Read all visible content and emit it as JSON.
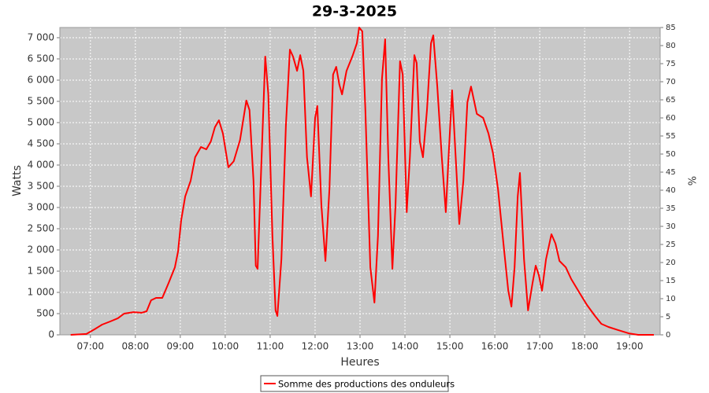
{
  "chart_data": {
    "type": "line",
    "title": "29-3-2025",
    "x_label": "Heures",
    "y_label": "Watts",
    "y2_label": "%",
    "x": [
      6.56,
      6.91,
      7.09,
      7.26,
      7.44,
      7.61,
      7.75,
      7.96,
      8.14,
      8.25,
      8.35,
      8.46,
      8.6,
      8.74,
      8.88,
      8.95,
      9.02,
      9.11,
      9.23,
      9.33,
      9.46,
      9.58,
      9.68,
      9.77,
      9.86,
      9.95,
      10.07,
      10.19,
      10.33,
      10.47,
      10.54,
      10.63,
      10.68,
      10.72,
      10.79,
      10.89,
      10.96,
      11.05,
      11.12,
      11.16,
      11.25,
      11.35,
      11.44,
      11.51,
      11.6,
      11.67,
      11.74,
      11.82,
      11.91,
      12.0,
      12.05,
      12.14,
      12.23,
      12.32,
      12.4,
      12.47,
      12.54,
      12.6,
      12.7,
      12.84,
      12.93,
      12.98,
      13.05,
      13.12,
      13.23,
      13.32,
      13.4,
      13.49,
      13.56,
      13.63,
      13.72,
      13.79,
      13.89,
      13.95,
      14.04,
      14.11,
      14.21,
      14.26,
      14.33,
      14.4,
      14.49,
      14.58,
      14.63,
      14.72,
      14.82,
      14.91,
      14.98,
      15.05,
      15.12,
      15.21,
      15.3,
      15.39,
      15.47,
      15.6,
      15.74,
      15.86,
      15.96,
      16.07,
      16.21,
      16.3,
      16.37,
      16.44,
      16.51,
      16.56,
      16.65,
      16.74,
      16.84,
      16.91,
      16.98,
      17.05,
      17.14,
      17.26,
      17.35,
      17.44,
      17.58,
      17.7,
      17.88,
      18.05,
      18.23,
      18.37,
      18.53,
      18.75,
      18.98,
      19.19,
      19.54
    ],
    "series": [
      {
        "name": "Somme des productions des onduleurs",
        "color": "#ff0000",
        "values": [
          0,
          20,
          130,
          240,
          315,
          390,
          500,
          535,
          520,
          555,
          815,
          870,
          870,
          1220,
          1590,
          1960,
          2700,
          3260,
          3630,
          4185,
          4425,
          4370,
          4555,
          4890,
          5055,
          4740,
          3945,
          4090,
          4590,
          5520,
          5295,
          3630,
          1630,
          1555,
          3630,
          6555,
          5665,
          2335,
          575,
          445,
          1780,
          4925,
          6720,
          6555,
          6220,
          6590,
          6220,
          4185,
          3260,
          5110,
          5390,
          3075,
          1740,
          3445,
          6130,
          6315,
          5890,
          5665,
          6220,
          6590,
          6870,
          7240,
          7150,
          5295,
          1590,
          760,
          2335,
          6035,
          6965,
          4185,
          1555,
          3075,
          6445,
          6130,
          2890,
          4185,
          6590,
          6405,
          4555,
          4185,
          5295,
          6870,
          7055,
          5850,
          4185,
          2890,
          4370,
          5760,
          4370,
          2610,
          3630,
          5480,
          5850,
          5205,
          5110,
          4740,
          4280,
          3445,
          1960,
          1040,
          665,
          1590,
          3260,
          3815,
          1780,
          575,
          1220,
          1630,
          1405,
          1040,
          1780,
          2370,
          2150,
          1740,
          1590,
          1315,
          1000,
          705,
          445,
          260,
          185,
          110,
          35,
          0,
          0
        ]
      }
    ],
    "xlim": [
      6.32,
      19.68
    ],
    "xticks": [
      {
        "value": 7,
        "label": "07:00"
      },
      {
        "value": 8,
        "label": "08:00"
      },
      {
        "value": 9,
        "label": "09:00"
      },
      {
        "value": 10,
        "label": "10:00"
      },
      {
        "value": 11,
        "label": "11:00"
      },
      {
        "value": 12,
        "label": "12:00"
      },
      {
        "value": 13,
        "label": "13:00"
      },
      {
        "value": 14,
        "label": "14:00"
      },
      {
        "value": 15,
        "label": "15:00"
      },
      {
        "value": 16,
        "label": "16:00"
      },
      {
        "value": 17,
        "label": "17:00"
      },
      {
        "value": 18,
        "label": "18:00"
      },
      {
        "value": 19,
        "label": "19:00"
      }
    ],
    "ylim": [
      0,
      7240
    ],
    "yticks": [
      0,
      500,
      {
        "value": 1000,
        "label": "1 000"
      },
      {
        "value": 1500,
        "label": "1 500"
      },
      {
        "value": 2000,
        "label": "2 000"
      },
      {
        "value": 2500,
        "label": "2 500"
      },
      {
        "value": 3000,
        "label": "3 000"
      },
      {
        "value": 3500,
        "label": "3 500"
      },
      {
        "value": 4000,
        "label": "4 000"
      },
      {
        "value": 4500,
        "label": "4 500"
      },
      {
        "value": 5000,
        "label": "5 000"
      },
      {
        "value": 5500,
        "label": "5 500"
      },
      {
        "value": 6000,
        "label": "6 000"
      },
      {
        "value": 6500,
        "label": "6 500"
      },
      {
        "value": 7000,
        "label": "7 000"
      }
    ],
    "y2lim": [
      0,
      85
    ],
    "y2ticks": [
      0,
      5,
      10,
      15,
      20,
      25,
      30,
      35,
      40,
      45,
      50,
      55,
      60,
      65,
      70,
      75,
      80,
      85
    ],
    "grid": true,
    "legend": "bottom"
  }
}
